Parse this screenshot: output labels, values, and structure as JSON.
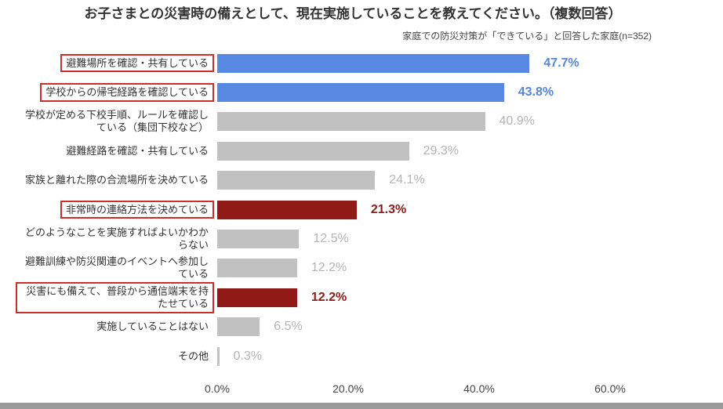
{
  "chart_data": {
    "type": "bar",
    "orientation": "horizontal",
    "title": "お子さまとの災害時の備えとして、現在実施していることを教えてください。（複数回答）",
    "subtitle": "家庭での防災対策が「できている」と回答した家庭(n=352)",
    "xlabel": "",
    "ylabel": "",
    "categories": [
      "避難場所を確認・共有している",
      "学校からの帰宅経路を確認している",
      "学校が定める下校手順、ルールを確認している（集団下校など）",
      "避難経路を確認・共有している",
      "家族と離れた際の合流場所を決めている",
      "非常時の連絡方法を決めている",
      "どのようなことを実施すればよいかわからない",
      "避難訓練や防災関連のイベントへ参加している",
      "災害にも備えて、普段から通信端末を持たせている",
      "実施していることはない",
      "その他"
    ],
    "values": [
      47.7,
      43.8,
      40.9,
      29.3,
      24.1,
      21.3,
      12.5,
      12.2,
      12.2,
      6.5,
      0.3
    ],
    "value_labels": [
      "47.7%",
      "43.8%",
      "40.9%",
      "29.3%",
      "24.1%",
      "21.3%",
      "12.5%",
      "12.2%",
      "12.2%",
      "6.5%",
      "0.3%"
    ],
    "xlim": [
      0,
      60
    ],
    "xticks": [
      0,
      20,
      40,
      60
    ],
    "xtick_labels": [
      "0.0%",
      "20.0%",
      "40.0%",
      "60.0%"
    ],
    "grid": false,
    "legend": "none",
    "bar_color_keys": [
      "blue",
      "blue",
      "gray",
      "gray",
      "gray",
      "red",
      "gray",
      "gray",
      "red",
      "gray",
      "gray"
    ],
    "boxed": [
      true,
      true,
      false,
      false,
      false,
      true,
      false,
      false,
      true,
      false,
      false
    ],
    "colors": {
      "blue": "#5788e2",
      "gray": "#c1c1c1",
      "red": "#8f1a16",
      "blue_text": "#5585dc",
      "gray_text": "#b4b4b4",
      "red_text": "#8f1a16",
      "box": "#c9302c"
    }
  }
}
